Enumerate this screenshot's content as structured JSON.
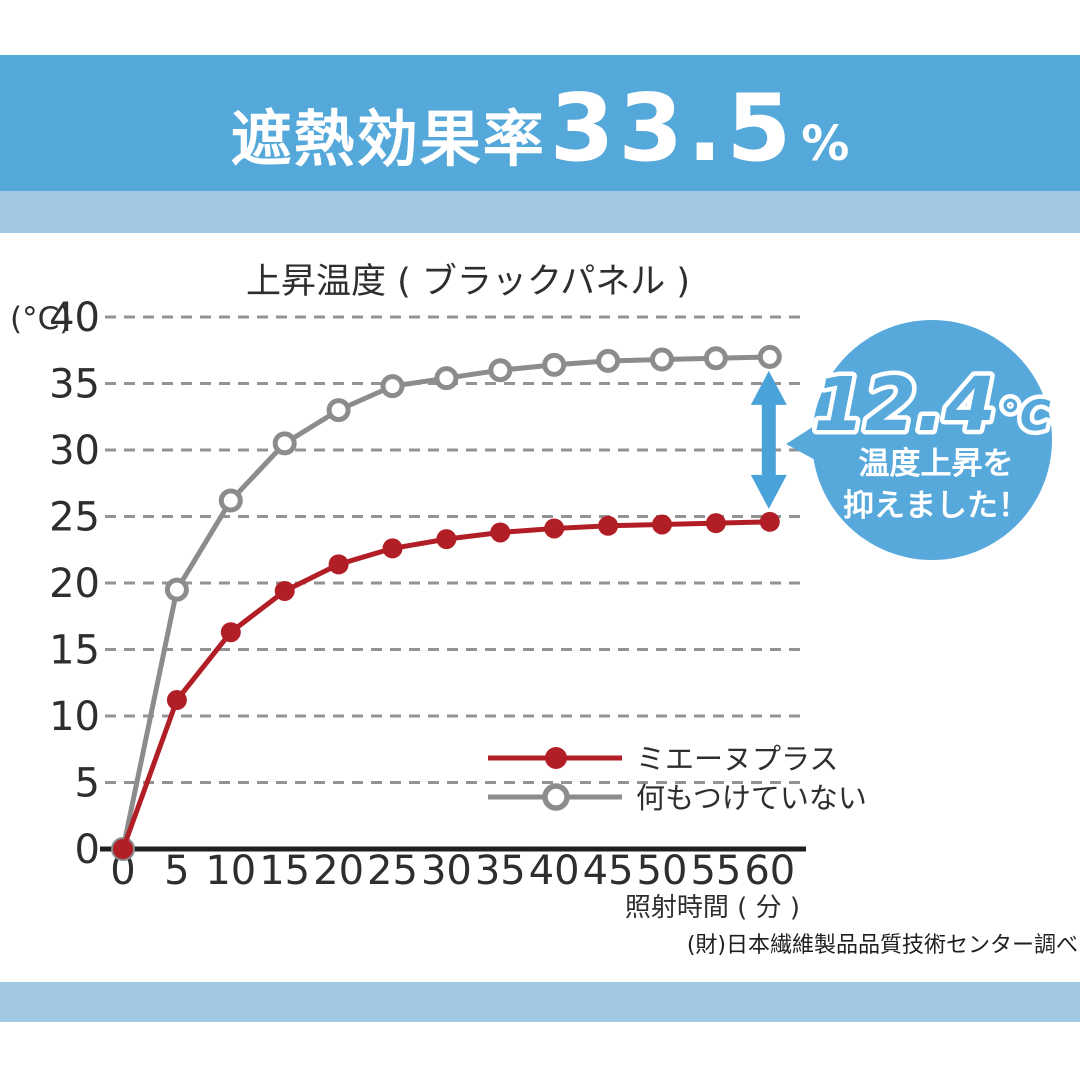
{
  "banner": {
    "title_prefix": "遮熱効果率",
    "value": "33.5",
    "unit": "%"
  },
  "colors": {
    "banner_bg": "#55a8da",
    "stripe": "#a0c8e2",
    "red_series": "#b21e26",
    "gray_series": "#8c8c8c",
    "gridline": "#939393",
    "axis": "#1f1f1f",
    "text_dark": "#2e2e2e",
    "arrow_blue": "#4aa3d8",
    "bubble_blue": "#57a9dc",
    "bubble_text": "#ffffff"
  },
  "chart_data": {
    "type": "line",
    "title": "上昇温度 ( ブラックパネル )",
    "y_unit": "(°C)",
    "xlabel": "照射時間 ( 分 )",
    "ylim": [
      0,
      40
    ],
    "yticks": [
      40,
      35,
      30,
      25,
      20,
      15,
      10,
      5,
      0
    ],
    "x": [
      0,
      5,
      10,
      15,
      20,
      25,
      30,
      35,
      40,
      45,
      50,
      55,
      60
    ],
    "grid": "dashed-horizontal",
    "legend_position": "inside-lower-right",
    "series": [
      {
        "name": "ミエーヌプラス",
        "marker": "filled",
        "color_key": "red_series",
        "values": [
          0,
          11.2,
          16.3,
          19.4,
          21.4,
          22.6,
          23.3,
          23.8,
          24.1,
          24.3,
          24.4,
          24.5,
          24.6
        ]
      },
      {
        "name": "何もつけていない",
        "marker": "open",
        "color_key": "gray_series",
        "values": [
          0,
          19.5,
          26.2,
          30.5,
          33.0,
          34.8,
          35.4,
          36.0,
          36.4,
          36.7,
          36.8,
          36.9,
          37.0
        ]
      }
    ],
    "callout": {
      "value": "12.4",
      "unit": "℃",
      "lines": [
        "温度上昇を",
        "抑えました！"
      ],
      "gap_at_x": 60,
      "gap_value": 12.4
    }
  },
  "footer": {
    "source": "(財)日本繊維製品品質技術センター調べ"
  }
}
